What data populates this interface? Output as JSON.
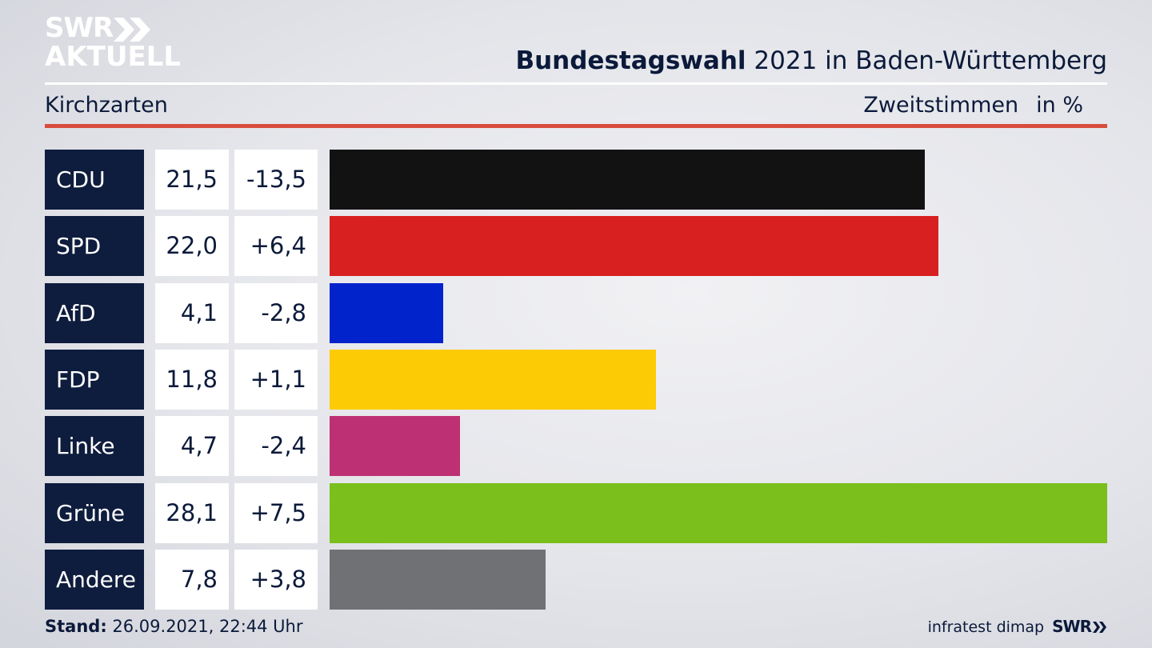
{
  "header": {
    "logo_line1": "SWR",
    "logo_line2": "AKTUELL",
    "title_bold": "Bundestagswahl",
    "title_rest": " 2021 in Baden-Württemberg",
    "location": "Kirchzarten",
    "measure": "Zweitstimmen",
    "unit": "in %"
  },
  "chart_data": {
    "type": "bar",
    "orientation": "horizontal",
    "categories": [
      "CDU",
      "SPD",
      "AfD",
      "FDP",
      "Linke",
      "Grüne",
      "Andere"
    ],
    "values": [
      21.5,
      22.0,
      4.1,
      11.8,
      4.7,
      28.1,
      7.8
    ],
    "value_labels": [
      "21,5",
      "22,0",
      "4,1",
      "11,8",
      "4,7",
      "28,1",
      "7,8"
    ],
    "differences": [
      "-13,5",
      "+6,4",
      "-2,8",
      "+1,1",
      "-2,4",
      "+7,5",
      "+3,8"
    ],
    "colors": [
      "#121212",
      "#d82020",
      "#0023cc",
      "#fdcb05",
      "#be3074",
      "#7abf1c",
      "#707174"
    ],
    "title": "Bundestagswahl 2021 in Baden-Württemberg",
    "xlabel": "",
    "ylabel": "",
    "legend": "none",
    "grid": false
  },
  "footer": {
    "stand_label": "Stand:",
    "stand_value": " 26.09.2021, 22:44 Uhr",
    "source": "infratest dimap",
    "brand": "SWR"
  }
}
